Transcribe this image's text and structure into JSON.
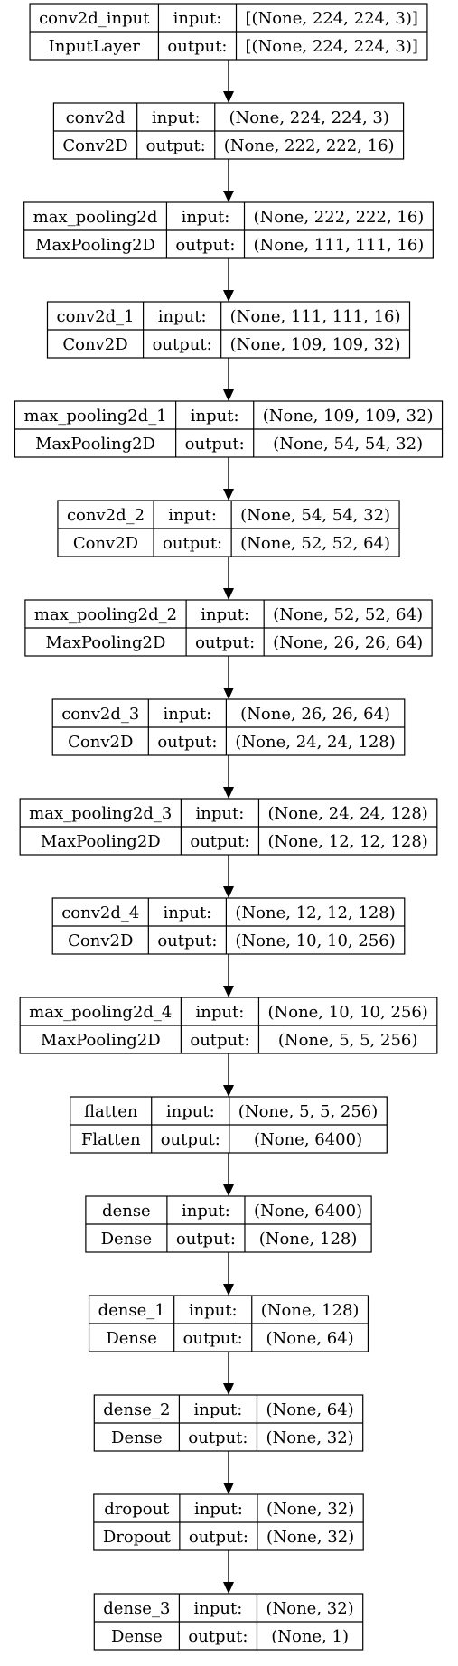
{
  "diagram": {
    "layers": [
      {
        "name": "conv2d_input",
        "type": "InputLayer",
        "input_label": "input:",
        "input": "[(None, 224, 224, 3)]",
        "output_label": "output:",
        "output": "[(None, 224, 224, 3)]"
      },
      {
        "name": "conv2d",
        "type": "Conv2D",
        "input_label": "input:",
        "input": "(None, 224, 224, 3)",
        "output_label": "output:",
        "output": "(None, 222, 222, 16)"
      },
      {
        "name": "max_pooling2d",
        "type": "MaxPooling2D",
        "input_label": "input:",
        "input": "(None, 222, 222, 16)",
        "output_label": "output:",
        "output": "(None, 111, 111, 16)"
      },
      {
        "name": "conv2d_1",
        "type": "Conv2D",
        "input_label": "input:",
        "input": "(None, 111, 111, 16)",
        "output_label": "output:",
        "output": "(None, 109, 109, 32)"
      },
      {
        "name": "max_pooling2d_1",
        "type": "MaxPooling2D",
        "input_label": "input:",
        "input": "(None, 109, 109, 32)",
        "output_label": "output:",
        "output": "(None, 54, 54, 32)"
      },
      {
        "name": "conv2d_2",
        "type": "Conv2D",
        "input_label": "input:",
        "input": "(None, 54, 54, 32)",
        "output_label": "output:",
        "output": "(None, 52, 52, 64)"
      },
      {
        "name": "max_pooling2d_2",
        "type": "MaxPooling2D",
        "input_label": "input:",
        "input": "(None, 52, 52, 64)",
        "output_label": "output:",
        "output": "(None, 26, 26, 64)"
      },
      {
        "name": "conv2d_3",
        "type": "Conv2D",
        "input_label": "input:",
        "input": "(None, 26, 26, 64)",
        "output_label": "output:",
        "output": "(None, 24, 24, 128)"
      },
      {
        "name": "max_pooling2d_3",
        "type": "MaxPooling2D",
        "input_label": "input:",
        "input": "(None, 24, 24, 128)",
        "output_label": "output:",
        "output": "(None, 12, 12, 128)"
      },
      {
        "name": "conv2d_4",
        "type": "Conv2D",
        "input_label": "input:",
        "input": "(None, 12, 12, 128)",
        "output_label": "output:",
        "output": "(None, 10, 10, 256)"
      },
      {
        "name": "max_pooling2d_4",
        "type": "MaxPooling2D",
        "input_label": "input:",
        "input": "(None, 10, 10, 256)",
        "output_label": "output:",
        "output": "(None, 5, 5, 256)"
      },
      {
        "name": "flatten",
        "type": "Flatten",
        "input_label": "input:",
        "input": "(None, 5, 5, 256)",
        "output_label": "output:",
        "output": "(None, 6400)"
      },
      {
        "name": "dense",
        "type": "Dense",
        "input_label": "input:",
        "input": "(None, 6400)",
        "output_label": "output:",
        "output": "(None, 128)"
      },
      {
        "name": "dense_1",
        "type": "Dense",
        "input_label": "input:",
        "input": "(None, 128)",
        "output_label": "output:",
        "output": "(None, 64)"
      },
      {
        "name": "dense_2",
        "type": "Dense",
        "input_label": "input:",
        "input": "(None, 64)",
        "output_label": "output:",
        "output": "(None, 32)"
      },
      {
        "name": "dropout",
        "type": "Dropout",
        "input_label": "input:",
        "input": "(None, 32)",
        "output_label": "output:",
        "output": "(None, 32)"
      },
      {
        "name": "dense_3",
        "type": "Dense",
        "input_label": "input:",
        "input": "(None, 32)",
        "output_label": "output:",
        "output": "(None, 1)"
      }
    ]
  }
}
